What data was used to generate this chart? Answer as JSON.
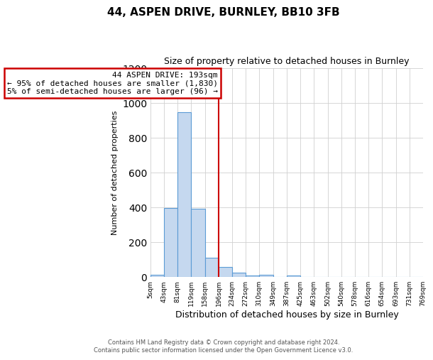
{
  "title": "44, ASPEN DRIVE, BURNLEY, BB10 3FB",
  "subtitle": "Size of property relative to detached houses in Burnley",
  "xlabel": "Distribution of detached houses by size in Burnley",
  "ylabel": "Number of detached properties",
  "bin_edges": [
    5,
    43,
    81,
    119,
    158,
    196,
    234,
    272,
    310,
    349,
    387,
    425,
    463,
    502,
    540,
    578,
    616,
    654,
    693,
    731,
    769
  ],
  "bin_labels": [
    "5sqm",
    "43sqm",
    "81sqm",
    "119sqm",
    "158sqm",
    "196sqm",
    "234sqm",
    "272sqm",
    "310sqm",
    "349sqm",
    "387sqm",
    "425sqm",
    "463sqm",
    "502sqm",
    "540sqm",
    "578sqm",
    "616sqm",
    "654sqm",
    "693sqm",
    "731sqm",
    "769sqm"
  ],
  "counts": [
    10,
    395,
    950,
    390,
    110,
    55,
    25,
    5,
    10,
    0,
    5,
    0,
    0,
    0,
    0,
    0,
    0,
    0,
    0,
    0
  ],
  "bar_color": "#c5d8ef",
  "bar_edge_color": "#5b9bd5",
  "property_line_x": 196,
  "property_line_color": "#cc0000",
  "annotation_text": "44 ASPEN DRIVE: 193sqm\n← 95% of detached houses are smaller (1,830)\n5% of semi-detached houses are larger (96) →",
  "annotation_box_color": "#ffffff",
  "annotation_box_edge_color": "#cc0000",
  "ylim": [
    0,
    1200
  ],
  "yticks": [
    0,
    200,
    400,
    600,
    800,
    1000,
    1200
  ],
  "footer_line1": "Contains HM Land Registry data © Crown copyright and database right 2024.",
  "footer_line2": "Contains public sector information licensed under the Open Government Licence v3.0.",
  "bg_color": "#ffffff",
  "grid_color": "#d0d0d0",
  "title_fontsize": 11,
  "subtitle_fontsize": 9,
  "xlabel_fontsize": 9,
  "ylabel_fontsize": 8,
  "tick_fontsize": 6.5,
  "annotation_fontsize": 8,
  "footer_fontsize": 6
}
